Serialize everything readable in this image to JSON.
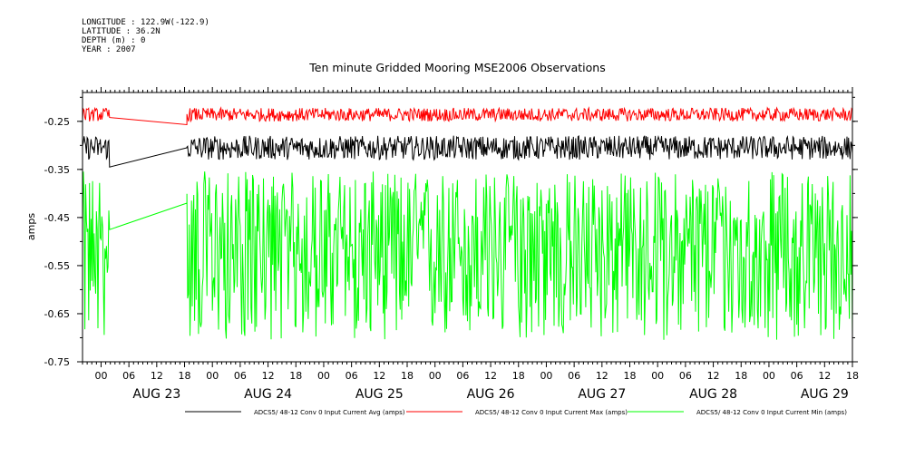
{
  "header": {
    "longitude": "LONGITUDE : 122.9W(-122.9)",
    "latitude": "LATITUDE : 36.2N",
    "depth": "DEPTH (m) : 0",
    "year": "YEAR : 2007"
  },
  "chart_data": {
    "type": "line",
    "title": "Ten minute Gridded Mooring MSE2006 Observations",
    "ylabel": "amps",
    "xlabel": "",
    "ylim": [
      -0.75,
      -0.19
    ],
    "yticks": [
      -0.25,
      -0.35,
      -0.45,
      -0.55,
      -0.65,
      -0.75
    ],
    "ytick_labels": [
      "-0.25",
      "-0.35",
      "-0.45",
      "-0.55",
      "-0.65",
      "-0.75"
    ],
    "x_unit": "hours since Aug 22 20:00",
    "xlim": [
      0,
      166
    ],
    "hour_ticks": [
      "00",
      "06",
      "12",
      "18",
      "00",
      "06",
      "12",
      "18",
      "00",
      "06",
      "12",
      "18",
      "00",
      "06",
      "12",
      "18",
      "00",
      "06",
      "12",
      "18",
      "00",
      "06",
      "12",
      "18",
      "00",
      "06",
      "12",
      "18"
    ],
    "day_labels": [
      "AUG 23",
      "AUG 24",
      "AUG 25",
      "AUG 26",
      "AUG 27",
      "AUG 28",
      "AUG 29"
    ],
    "grid": false,
    "legend_position": "bottom",
    "series": [
      {
        "name": "ADCS5/ 48-12 Conv 0 Input Current Avg (amps)",
        "color": "#000000",
        "mean": -0.305,
        "amplitude": 0.025,
        "gap_start_value": -0.345,
        "gap_end_value": -0.305
      },
      {
        "name": "ADCS5/ 48-12 Conv 0 Input Current Max (amps)",
        "color": "#ff0000",
        "mean": -0.236,
        "amplitude": 0.014,
        "gap_start_value": -0.242,
        "gap_end_value": -0.257
      },
      {
        "name": "ADCS5/ 48-12 Conv 0 Input Current Min (amps)",
        "color": "#00ff00",
        "mean": -0.51,
        "amplitude": 0.13,
        "gap_start_value": -0.475,
        "gap_end_value": -0.42
      }
    ],
    "data_gap_hours": [
      6,
      22.5
    ]
  }
}
